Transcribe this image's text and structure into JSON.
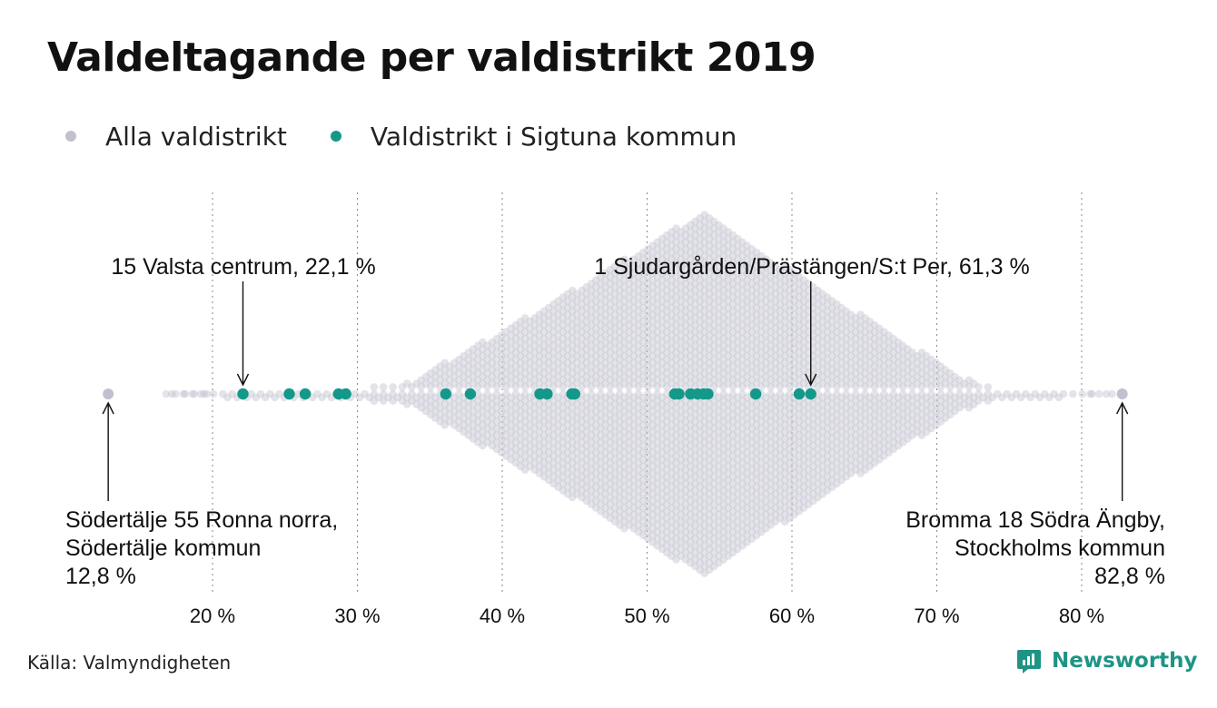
{
  "title": "Valdeltagande per valdistrikt 2019",
  "legend": {
    "all": {
      "label": "Alla valdistrikt",
      "color": "#c2c0cf"
    },
    "sigtuna": {
      "label": "Valdistrikt i Sigtuna kommun",
      "color": "#14988a"
    }
  },
  "chart_data": {
    "type": "scatter",
    "subtype": "beeswarm",
    "xlim": [
      12,
      84
    ],
    "xticks": [
      20,
      30,
      40,
      50,
      60,
      70,
      80
    ],
    "tick_labels": [
      "20 %",
      "30 %",
      "40 %",
      "50 %",
      "60 %",
      "70 %",
      "80 %"
    ],
    "grid": "vertical dotted",
    "all_districts": {
      "name": "Alla valdistrikt",
      "min": 12.8,
      "max": 82.8,
      "peak": 53.8
    },
    "sigtuna_values": [
      22.1,
      25.3,
      26.4,
      28.7,
      29.2,
      36.1,
      37.8,
      42.6,
      43.1,
      44.8,
      45.0,
      51.9,
      52.2,
      53.0,
      53.5,
      53.9,
      54.2,
      57.5,
      60.5,
      61.3
    ],
    "annotations": [
      {
        "name": "valsta",
        "text": [
          "15 Valsta centrum, 22,1 %"
        ],
        "value": 22.1,
        "anchor": "above"
      },
      {
        "name": "sjudargarden",
        "text": [
          "1 Sjudargården/Prästängen/S:t Per, 61,3 %"
        ],
        "value": 61.3,
        "anchor": "above"
      },
      {
        "name": "sodertalje",
        "text": [
          "Södertälje 55 Ronna norra,",
          "Södertälje kommun",
          "12,8 %"
        ],
        "value": 12.8,
        "anchor": "below-left"
      },
      {
        "name": "bromma",
        "text": [
          "Bromma 18 Södra Ängby,",
          "Stockholms kommun",
          "82,8 %"
        ],
        "value": 82.8,
        "anchor": "below-right"
      }
    ]
  },
  "source": "Källa: Valmyndigheten",
  "brand": "Newsworthy"
}
